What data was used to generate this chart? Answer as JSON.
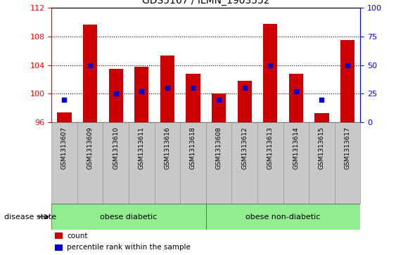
{
  "title": "GDS5167 / ILMN_1903552",
  "samples": [
    "GSM1313607",
    "GSM1313609",
    "GSM1313610",
    "GSM1313611",
    "GSM1313616",
    "GSM1313618",
    "GSM1313608",
    "GSM1313612",
    "GSM1313613",
    "GSM1313614",
    "GSM1313615",
    "GSM1313617"
  ],
  "bar_tops": [
    97.4,
    109.6,
    103.5,
    103.8,
    105.3,
    102.8,
    100.0,
    101.8,
    109.7,
    102.8,
    97.3,
    107.5
  ],
  "percentile_values": [
    20,
    50,
    25,
    27,
    30,
    30,
    20,
    30,
    50,
    27,
    20,
    50
  ],
  "bar_base": 96,
  "ylim_left": [
    96,
    112
  ],
  "ylim_right": [
    0,
    100
  ],
  "yticks_left": [
    96,
    100,
    104,
    108,
    112
  ],
  "yticks_right": [
    0,
    25,
    50,
    75,
    100
  ],
  "groups": [
    {
      "label": "obese diabetic",
      "start": 0,
      "end": 6,
      "color": "#90EE90"
    },
    {
      "label": "obese non-diabetic",
      "start": 6,
      "end": 12,
      "color": "#90EE90"
    }
  ],
  "bar_color": "#CC0000",
  "percentile_color": "#0000CC",
  "background_color": "#ffffff",
  "tick_label_bg": "#C8C8C8",
  "disease_state_label": "disease state",
  "legend_items": [
    {
      "label": "count",
      "color": "#CC0000"
    },
    {
      "label": "percentile rank within the sample",
      "color": "#0000CC"
    }
  ],
  "grid_yticks": [
    100,
    104,
    108
  ]
}
